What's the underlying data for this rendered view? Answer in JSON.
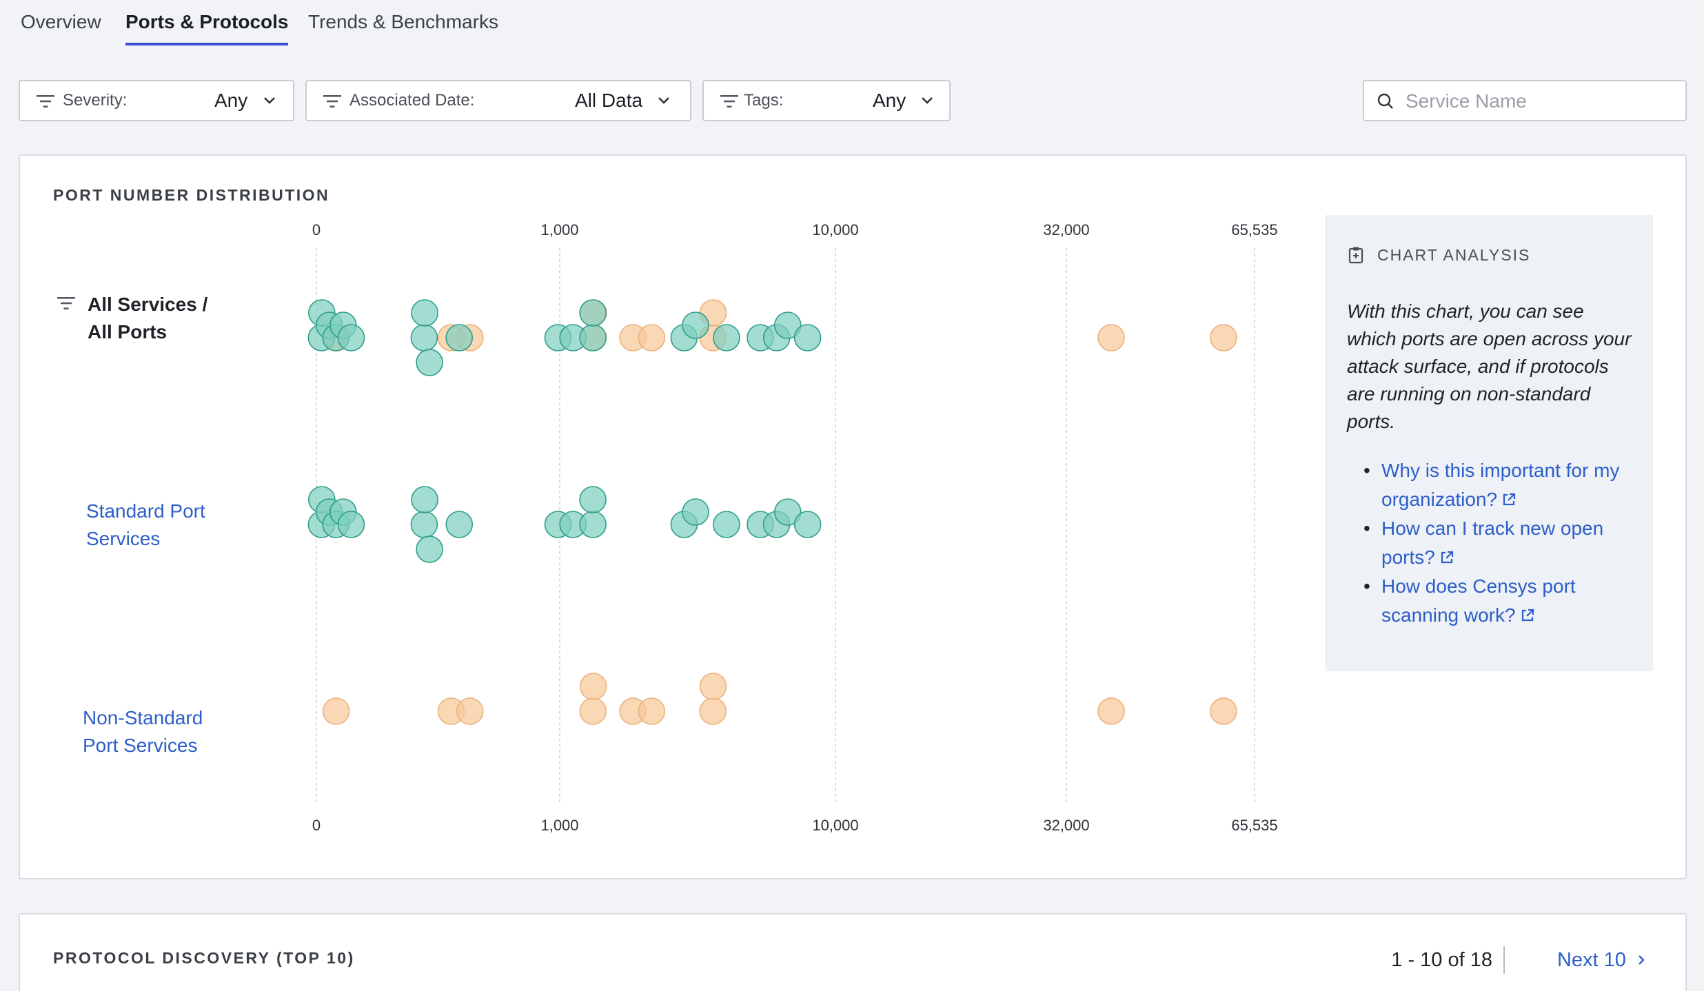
{
  "tabs": [
    {
      "label": "Overview",
      "active": false
    },
    {
      "label": "Ports & Protocols",
      "active": true
    },
    {
      "label": "Trends & Benchmarks",
      "active": false
    }
  ],
  "filters": {
    "severity": {
      "label": "Severity:",
      "value": "Any"
    },
    "associated_date": {
      "label": "Associated Date:",
      "value": "All Data"
    },
    "tags": {
      "label": "Tags:",
      "value": "Any"
    }
  },
  "search": {
    "placeholder": "Service Name",
    "value": ""
  },
  "port_card": {
    "title": "PORT NUMBER DISTRIBUTION",
    "rows": {
      "all": {
        "line1": "All Services /",
        "line2": "All Ports"
      },
      "standard": {
        "line1": "Standard Port",
        "line2": "Services"
      },
      "nonstandard": {
        "line1": "Non-Standard",
        "line2": "Port Services"
      }
    }
  },
  "chart_data": {
    "type": "scatter",
    "title": "PORT NUMBER DISTRIBUTION",
    "x_ticks": [
      "0",
      "1,000",
      "10,000",
      "32,000",
      "65,535"
    ],
    "x_scale": "piecewise (0, 1,000, 10,000, 32,000, 65,535)",
    "rows": [
      "All Services / All Ports",
      "Standard Port Services",
      "Non-Standard Port Services"
    ],
    "colors": {
      "standard": "#7fcfbf",
      "standard_stroke": "#2e9e8a",
      "nonstandard": "#f8c99a",
      "nonstandard_stroke": "#ecb078"
    },
    "standard_ports": [
      21,
      22,
      53,
      80,
      110,
      143,
      443,
      445,
      465,
      587,
      993,
      1433,
      2082,
      2083,
      5060,
      5432,
      6443,
      7547,
      8080,
      8443,
      9090
    ],
    "nonstandard_ports": [
      81,
      554,
      631,
      2087,
      2096,
      3389,
      3999,
      6001,
      6008,
      40000,
      60000
    ]
  },
  "analysis": {
    "heading": "CHART ANALYSIS",
    "text": "With this chart, you can see which ports are open across your attack surface, and if protocols are running on non-standard ports.",
    "links": [
      {
        "label": "Why is this important for my organization?"
      },
      {
        "label": "How can I track new open ports?"
      },
      {
        "label": "How does Censys port scanning work?"
      }
    ]
  },
  "protocol_card": {
    "title": "PROTOCOL DISCOVERY (TOP 10)",
    "range": "1 - 10 of 18",
    "next": "Next 10"
  },
  "icons": {
    "filter": "filter-icon",
    "chevron": "chevron-down-icon",
    "search": "search-icon",
    "clipboard": "clipboard-icon",
    "external": "external-link-icon",
    "next": "chevron-right-icon"
  }
}
